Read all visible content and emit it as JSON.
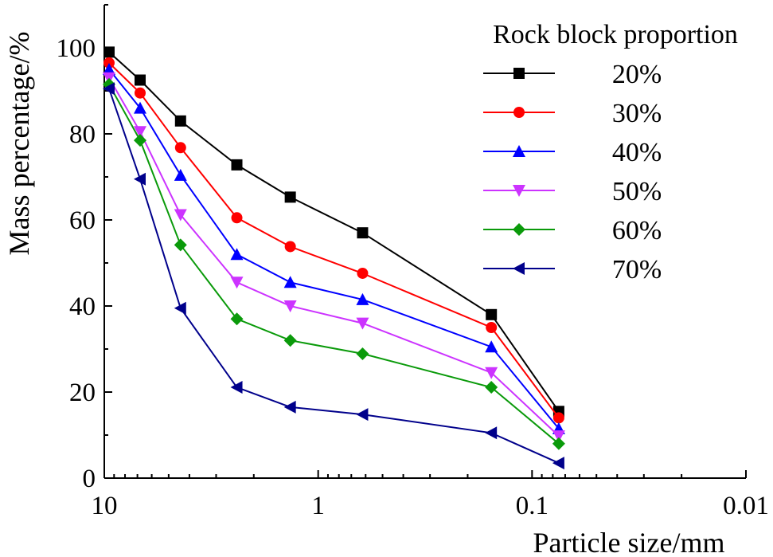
{
  "chart_data": {
    "type": "line",
    "title": "",
    "xlabel": "Particle size/mm",
    "ylabel": "Mass percentage/%",
    "x_scale": "log",
    "x_reversed": true,
    "xlim": [
      10,
      0.01
    ],
    "ylim": [
      0,
      110
    ],
    "x_ticks": [
      10,
      1,
      0.1,
      0.01
    ],
    "x_tick_labels": [
      "10",
      "1",
      "0.1",
      "0.01"
    ],
    "y_ticks": [
      0,
      20,
      40,
      60,
      80,
      100
    ],
    "y_tick_labels": [
      "0",
      "20",
      "40",
      "60",
      "80",
      "100"
    ],
    "grid": false,
    "legend_title": "Rock block proportion",
    "legend_position": "top-right",
    "x": [
      9.5,
      6.8,
      4.4,
      2.4,
      1.35,
      0.62,
      0.155,
      0.075
    ],
    "series": [
      {
        "name": "20%",
        "color": "#000000",
        "marker": "square",
        "values": [
          99,
          92.5,
          83,
          72.8,
          65.3,
          57,
          38,
          15.5
        ]
      },
      {
        "name": "30%",
        "color": "#ff0000",
        "marker": "circle",
        "values": [
          96.5,
          89.5,
          76.8,
          60.5,
          53.8,
          47.6,
          35,
          14
        ]
      },
      {
        "name": "40%",
        "color": "#0000ff",
        "marker": "triangle-up",
        "values": [
          95,
          86,
          70.4,
          52,
          45.5,
          41.5,
          30.5,
          11.5
        ]
      },
      {
        "name": "50%",
        "color": "#cc33ff",
        "marker": "triangle-down",
        "values": [
          93,
          80.5,
          61.2,
          45.5,
          40,
          36,
          24.5,
          9.8
        ]
      },
      {
        "name": "60%",
        "color": "#0a9a0a",
        "marker": "diamond",
        "values": [
          91.5,
          78.5,
          54.2,
          37,
          32,
          28.9,
          21.1,
          8
        ]
      },
      {
        "name": "70%",
        "color": "#00008b",
        "marker": "triangle-left",
        "values": [
          90.5,
          69.5,
          39.5,
          21.1,
          16.5,
          14.8,
          10.5,
          3.5
        ]
      }
    ]
  }
}
